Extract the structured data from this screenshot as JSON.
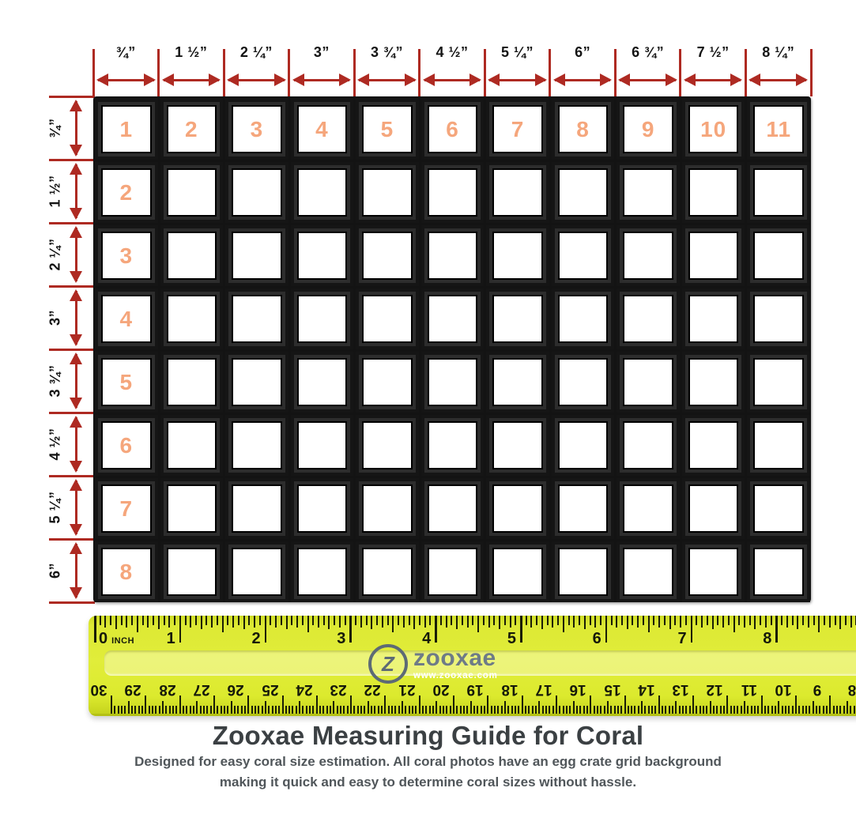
{
  "colors": {
    "arrow_red": "#ae2a22",
    "cell_number_orange": "#f5a67c",
    "grid_black": "#131313",
    "ruler_yellow": "#dcea2e",
    "logo_gray": "#6e7b87",
    "title_color": "#3b4043"
  },
  "top_scale": {
    "labels": [
      "¾”",
      "1 ½”",
      "2 ¼”",
      "3”",
      "3 ¾”",
      "4 ½”",
      "5 ¼”",
      "6”",
      "6 ¾”",
      "7 ½”",
      "8 ¼”"
    ]
  },
  "left_scale": {
    "labels": [
      "¾”",
      "1 ½”",
      "2 ¼”",
      "3”",
      "3 ¾”",
      "4 ½”",
      "5 ¼”",
      "6”"
    ]
  },
  "grid": {
    "columns": 11,
    "rows": 8,
    "top_row_numbers": [
      "1",
      "2",
      "3",
      "4",
      "5",
      "6",
      "7",
      "8",
      "9",
      "10",
      "11"
    ],
    "left_column_numbers": [
      "2",
      "3",
      "4",
      "5",
      "6",
      "7",
      "8"
    ]
  },
  "ruler": {
    "zero_label": "0",
    "unit_label": "INCH",
    "inch_numbers": [
      "1",
      "2",
      "3",
      "4",
      "5",
      "6",
      "7",
      "8"
    ],
    "cm_numbers": [
      "30",
      "29",
      "28",
      "27",
      "26",
      "25",
      "24",
      "23",
      "22",
      "21",
      "20",
      "19",
      "18",
      "17",
      "16",
      "15",
      "14",
      "13",
      "12",
      "11",
      "10",
      "9",
      "8"
    ],
    "logo_symbol": "Z",
    "logo_name": "zooxae",
    "logo_url": "www.zooxae.com"
  },
  "footer": {
    "title": "Zooxae Measuring Guide for Coral",
    "subtitle_line1": "Designed for easy coral size estimation. All coral photos have an egg crate grid background",
    "subtitle_line2": "making it quick and easy to determine coral sizes without hassle."
  }
}
